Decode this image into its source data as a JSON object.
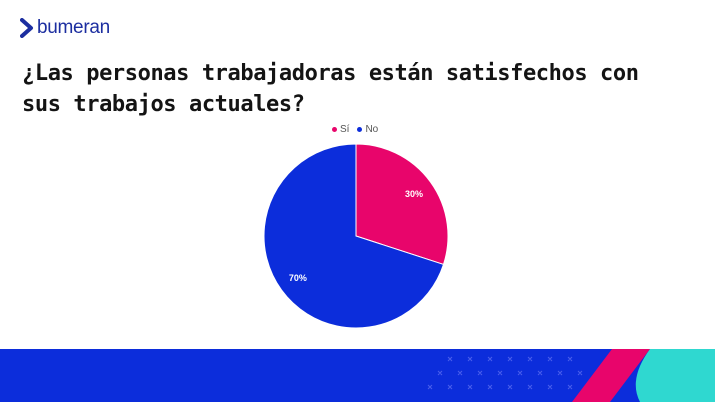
{
  "brand": {
    "name": "bumeran",
    "color": "#1c2ea0"
  },
  "chart_data": {
    "type": "pie",
    "title": "¿Las personas trabajadoras están satisfechos con sus trabajos actuales?",
    "categories": [
      "Sí",
      "No"
    ],
    "values": [
      30,
      70
    ],
    "labels": [
      "30%",
      "70%"
    ],
    "colors": [
      "#e8056b",
      "#0c2ddb"
    ],
    "legend": "top"
  },
  "footer": {
    "band_color": "#0c2ddb",
    "accent_pink": "#e8056b",
    "accent_teal": "#2fd8d0"
  }
}
